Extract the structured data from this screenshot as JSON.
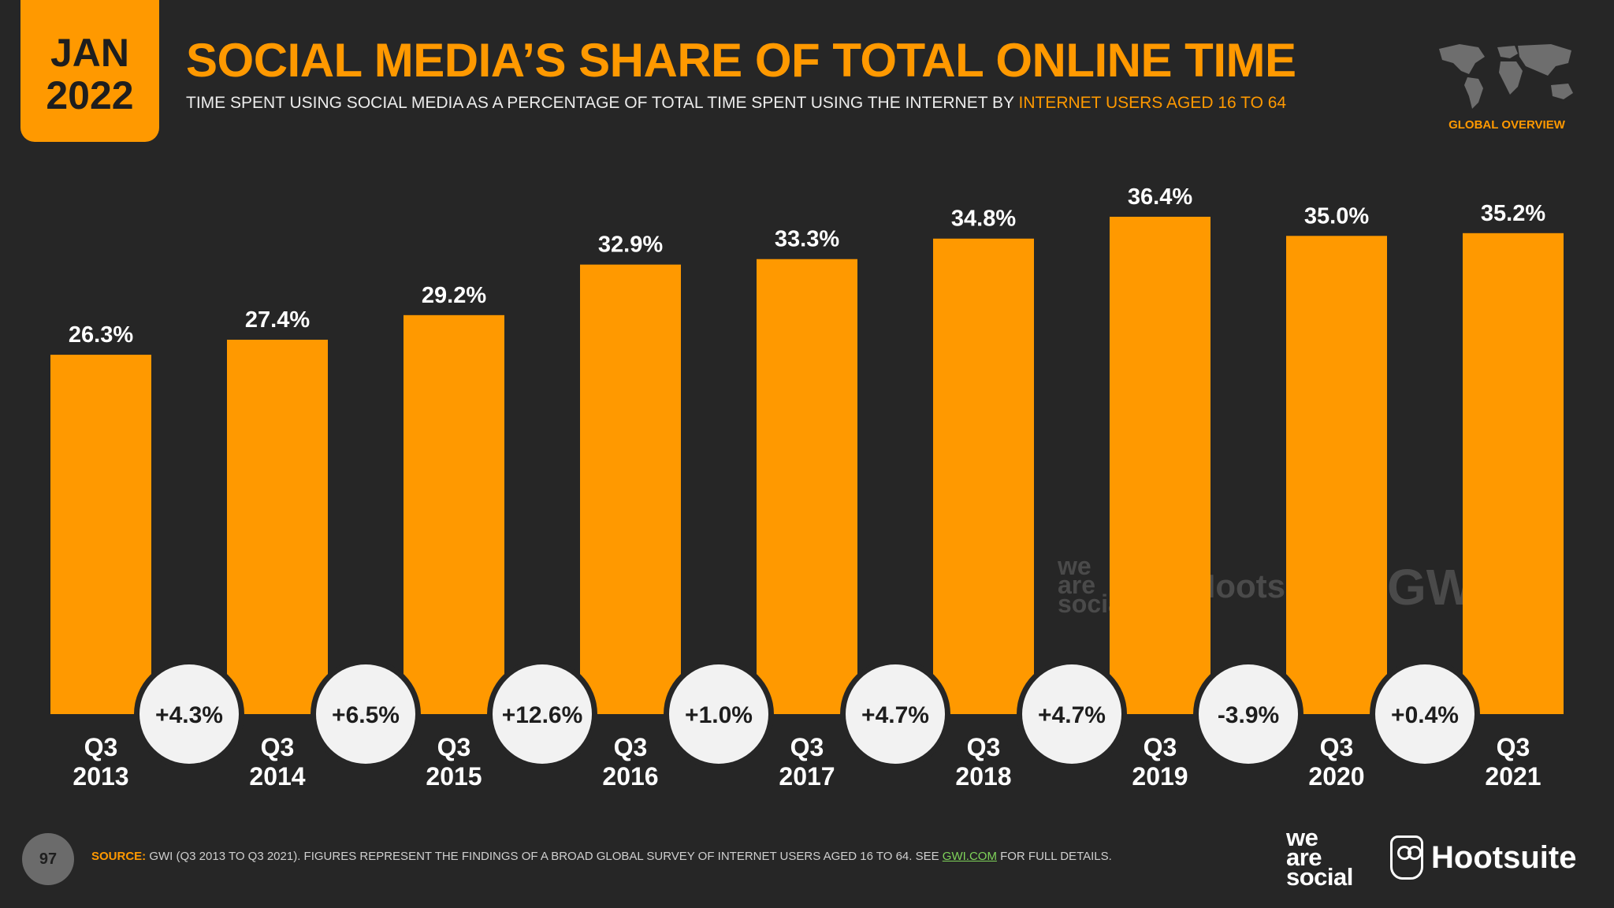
{
  "header": {
    "month": "JAN",
    "year": "2022",
    "title": "SOCIAL MEDIA’S SHARE OF TOTAL ONLINE TIME",
    "subtitle_main": "TIME SPENT USING SOCIAL MEDIA AS A PERCENTAGE OF TOTAL TIME SPENT USING THE INTERNET BY ",
    "subtitle_highlight": "INTERNET USERS AGED 16 TO 64",
    "region_label": "GLOBAL OVERVIEW"
  },
  "chart_data": {
    "type": "bar",
    "categories": [
      "Q3 2013",
      "Q3 2014",
      "Q3 2015",
      "Q3 2016",
      "Q3 2017",
      "Q3 2018",
      "Q3 2019",
      "Q3 2020",
      "Q3 2021"
    ],
    "category_lines": [
      [
        "Q3",
        "2013"
      ],
      [
        "Q3",
        "2014"
      ],
      [
        "Q3",
        "2015"
      ],
      [
        "Q3",
        "2016"
      ],
      [
        "Q3",
        "2017"
      ],
      [
        "Q3",
        "2018"
      ],
      [
        "Q3",
        "2019"
      ],
      [
        "Q3",
        "2020"
      ],
      [
        "Q3",
        "2021"
      ]
    ],
    "values": [
      26.3,
      27.4,
      29.2,
      32.9,
      33.3,
      34.8,
      36.4,
      35.0,
      35.2
    ],
    "value_labels": [
      "26.3%",
      "27.4%",
      "29.2%",
      "32.9%",
      "33.3%",
      "34.8%",
      "36.4%",
      "35.0%",
      "35.2%"
    ],
    "changes": [
      "+4.3%",
      "+6.5%",
      "+12.6%",
      "+1.0%",
      "+4.7%",
      "+4.7%",
      "-3.9%",
      "+0.4%"
    ],
    "ylim": [
      0,
      36.4
    ],
    "colors": {
      "bar": "#ff9900",
      "background": "#262626",
      "bubble": "#f2f2f2"
    }
  },
  "watermarks": {
    "we": "we",
    "are": "are",
    "social": "social",
    "hootsuite": "Hootsuite",
    "gwi": "GWI."
  },
  "footer": {
    "page_number": "97",
    "source_label": "SOURCE:",
    "source_text": " GWI (Q3 2013 TO Q3 2021). FIGURES REPRESENT THE FINDINGS OF A BROAD GLOBAL SURVEY OF INTERNET USERS AGED 16 TO 64. SEE ",
    "source_link": "GWI.COM",
    "source_tail": " FOR FULL DETAILS.",
    "brand_we": "we",
    "brand_are": "are",
    "brand_social": "social",
    "brand_hootsuite": "Hootsuite"
  }
}
